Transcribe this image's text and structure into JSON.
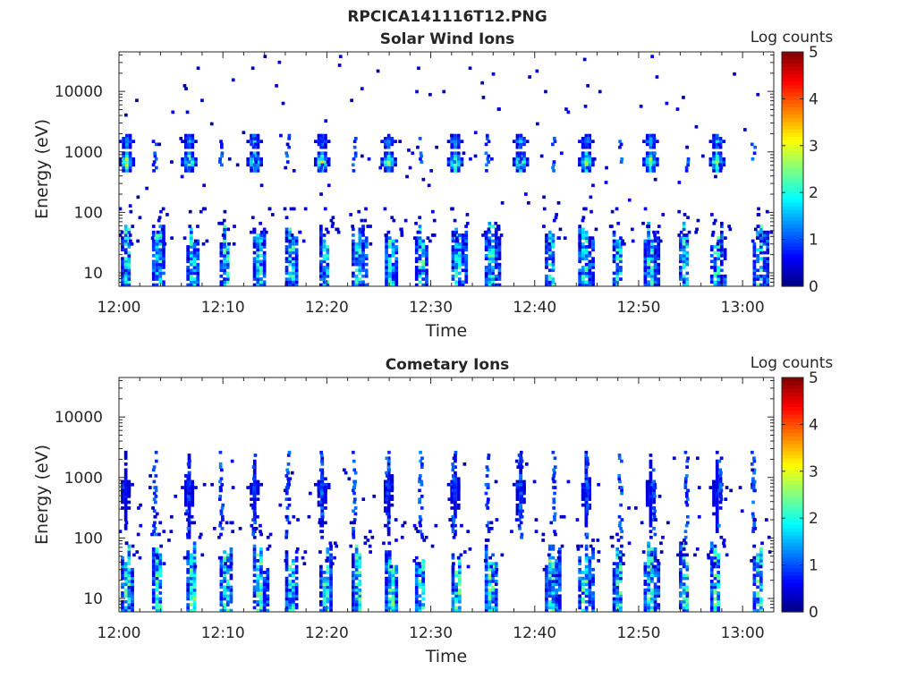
{
  "figure_title": "RPCICA141116T12.PNG",
  "colorbar": {
    "label": "Log counts",
    "ticks": [
      "0",
      "1",
      "2",
      "3",
      "4",
      "5"
    ],
    "range": [
      0,
      5
    ],
    "colormap": "jet"
  },
  "chart_data": [
    {
      "type": "heatmap",
      "title": "Solar Wind Ions",
      "xlabel": "Time",
      "ylabel": "Energy (eV)",
      "xticks": [
        "12:00",
        "12:10",
        "12:20",
        "12:30",
        "12:40",
        "12:50",
        "13:00"
      ],
      "xlim_minutes": [
        0,
        63
      ],
      "yticks": [
        "10",
        "100",
        "1000",
        "10000"
      ],
      "ylim": [
        6,
        45000
      ],
      "yscale": "log",
      "zlim": [
        0,
        5
      ],
      "bands": [
        {
          "name": "solar wind ~700 eV",
          "energy": [
            500,
            950
          ],
          "peak_log_counts": 3.2
        },
        {
          "name": "solar wind ~1500 eV",
          "energy": [
            1200,
            1800
          ],
          "peak_log_counts": 1.8
        },
        {
          "name": "low energy ions",
          "energy": [
            6,
            90
          ],
          "peak_log_counts": 2.4
        },
        {
          "name": "sparse high energy counts",
          "energy": [
            2500,
            40000
          ],
          "peak_log_counts": 0.6
        }
      ],
      "sweep_times_minutes": [
        0.6,
        6.6,
        12.9,
        19.4,
        25.8,
        32.2,
        38.5,
        44.8,
        51.0,
        57.4
      ],
      "low_energy_pulse_minutes": [
        0.5,
        3.5,
        6.8,
        10.0,
        13.2,
        16.3,
        19.6,
        22.7,
        25.9,
        28.8,
        32.3,
        35.5,
        41.3,
        44.5,
        47.8,
        50.8,
        54.2,
        57.2,
        61.3
      ]
    },
    {
      "type": "heatmap",
      "title": "Cometary Ions",
      "xlabel": "Time",
      "ylabel": "Energy (eV)",
      "xticks": [
        "12:00",
        "12:10",
        "12:20",
        "12:30",
        "12:40",
        "12:50",
        "13:00"
      ],
      "xlim_minutes": [
        0,
        63
      ],
      "yticks": [
        "10",
        "100",
        "1000",
        "10000"
      ],
      "ylim": [
        6,
        45000
      ],
      "yscale": "log",
      "zlim": [
        0,
        5
      ],
      "bands": [
        {
          "name": "sweep ~700 eV",
          "energy": [
            600,
            850
          ],
          "peak_log_counts": 1.8
        },
        {
          "name": "low energy ions",
          "energy": [
            6,
            100
          ],
          "peak_log_counts": 2.6
        },
        {
          "name": "sparse mid energy counts",
          "energy": [
            100,
            2500
          ],
          "peak_log_counts": 0.8
        }
      ],
      "sweep_times_minutes": [
        0.5,
        6.6,
        12.9,
        19.4,
        25.8,
        32.2,
        38.5,
        44.8,
        51.0,
        57.4
      ],
      "low_energy_pulse_minutes": [
        0.5,
        3.5,
        6.8,
        10.0,
        13.2,
        16.3,
        19.6,
        22.7,
        25.9,
        28.8,
        32.3,
        35.5,
        41.3,
        44.5,
        47.8,
        50.8,
        54.2,
        57.2,
        61.3
      ]
    }
  ]
}
